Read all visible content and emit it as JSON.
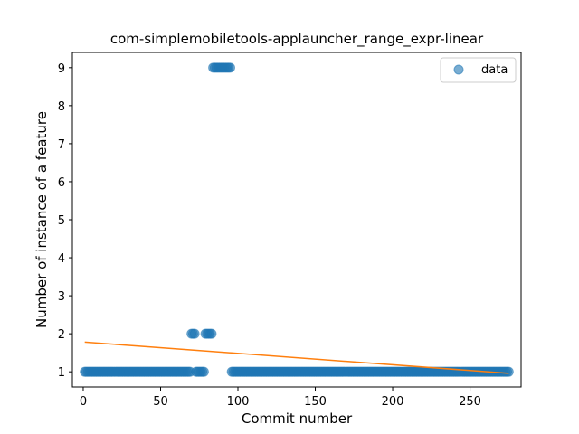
{
  "chart_data": {
    "type": "scatter",
    "title": "com-simplemobiletools-applauncher_range_expr-linear",
    "xlabel": "Commit number",
    "ylabel": "Number of instance of a feature",
    "xlim": [
      -7,
      283
    ],
    "ylim": [
      0.6,
      9.4
    ],
    "xticks": [
      0,
      50,
      100,
      150,
      200,
      250
    ],
    "yticks": [
      1,
      2,
      3,
      4,
      5,
      6,
      7,
      8,
      9
    ],
    "legend": {
      "placement": "top-right",
      "entries": [
        "data"
      ]
    },
    "colors": {
      "points": "#1f77b4",
      "fit": "#ff7f0e"
    },
    "series": [
      {
        "name": "data",
        "kind": "scatter",
        "segments": [
          {
            "x_start": 1,
            "x_end": 69,
            "y": 1
          },
          {
            "x_start": 70,
            "x_end": 72,
            "y": 2
          },
          {
            "x_start": 73,
            "x_end": 78,
            "y": 1
          },
          {
            "x_start": 79,
            "x_end": 83,
            "y": 2
          },
          {
            "x_start": 84,
            "x_end": 95,
            "y": 9
          },
          {
            "x_start": 96,
            "x_end": 275,
            "y": 1
          }
        ]
      },
      {
        "name": "",
        "kind": "line",
        "x": [
          1,
          275
        ],
        "y": [
          1.78,
          0.96
        ]
      }
    ]
  }
}
